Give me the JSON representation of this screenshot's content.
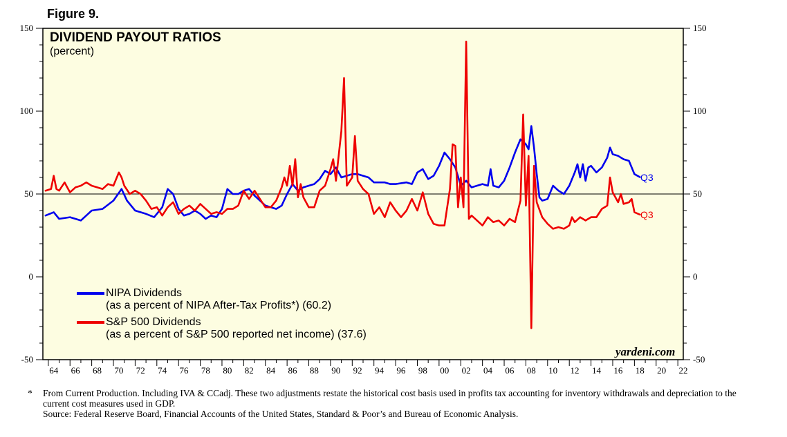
{
  "figure_label": "Figure 9.",
  "watermark": "yardeni.com",
  "footnote": {
    "marker": "*",
    "line1": "From Current Production. Including IVA & CCadj. These two adjustments restate the historical cost basis used in profits tax accounting for inventory withdrawals and depreciation to the current cost measures used in GDP.",
    "source": "Source: Federal Reserve Board, Financial Accounts of the United States, Standard & Poor’s and Bureau of Economic Analysis."
  },
  "legend": {
    "nipa_label": "NIPA Dividends",
    "nipa_note": "(as a percent of NIPA After-Tax Profits*) (60.2)",
    "sp_label": "S&P 500 Dividends",
    "sp_note": "(as a percent of S&P 500 reported net income) (37.6)"
  },
  "colors": {
    "background": "#fdfde1",
    "nipa": "#0000ee",
    "sp": "#ee0000",
    "axis": "#000000"
  },
  "chart_data": {
    "type": "line",
    "title": "DIVIDEND PAYOUT RATIOS",
    "subtitle": "(percent)",
    "ylabel": "percent",
    "xlim": [
      1963.5,
      2022.5
    ],
    "ylim": [
      -50,
      150
    ],
    "y_ticks": [
      -50,
      0,
      50,
      100,
      150
    ],
    "x_tick_labels": [
      "64",
      "66",
      "68",
      "70",
      "72",
      "74",
      "76",
      "78",
      "80",
      "82",
      "84",
      "86",
      "88",
      "90",
      "92",
      "94",
      "96",
      "98",
      "00",
      "02",
      "04",
      "06",
      "08",
      "10",
      "12",
      "14",
      "16",
      "18",
      "20",
      "22"
    ],
    "x_tick_years": [
      1964,
      1966,
      1968,
      1970,
      1972,
      1974,
      1976,
      1978,
      1980,
      1982,
      1984,
      1986,
      1988,
      1990,
      1992,
      1994,
      1996,
      1998,
      2000,
      2002,
      2004,
      2006,
      2008,
      2010,
      2012,
      2014,
      2016,
      2018,
      2020,
      2022
    ],
    "reference_line": 50,
    "series": [
      {
        "name": "NIPA Dividends",
        "end_label": "Q3",
        "last_value": 60.2,
        "points": [
          [
            1963.75,
            37
          ],
          [
            1964.5,
            39
          ],
          [
            1965,
            35
          ],
          [
            1966,
            36
          ],
          [
            1967,
            34
          ],
          [
            1968,
            40
          ],
          [
            1969,
            41
          ],
          [
            1970,
            46
          ],
          [
            1970.75,
            53
          ],
          [
            1971.25,
            46
          ],
          [
            1972,
            40
          ],
          [
            1973,
            38
          ],
          [
            1973.75,
            36
          ],
          [
            1974.5,
            42
          ],
          [
            1975,
            53
          ],
          [
            1975.5,
            50
          ],
          [
            1976,
            41
          ],
          [
            1976.5,
            37
          ],
          [
            1977,
            38
          ],
          [
            1977.5,
            40
          ],
          [
            1978,
            38
          ],
          [
            1978.5,
            35
          ],
          [
            1979,
            37
          ],
          [
            1979.5,
            36
          ],
          [
            1980,
            41
          ],
          [
            1980.5,
            53
          ],
          [
            1981,
            50
          ],
          [
            1981.5,
            50
          ],
          [
            1982,
            52
          ],
          [
            1982.5,
            53
          ],
          [
            1983,
            49
          ],
          [
            1983.5,
            46
          ],
          [
            1984,
            43
          ],
          [
            1985,
            41
          ],
          [
            1985.5,
            43
          ],
          [
            1986,
            50
          ],
          [
            1986.5,
            56
          ],
          [
            1987,
            52
          ],
          [
            1987.5,
            54
          ],
          [
            1988,
            55
          ],
          [
            1988.5,
            56
          ],
          [
            1989,
            59
          ],
          [
            1989.5,
            64
          ],
          [
            1990,
            62
          ],
          [
            1990.5,
            66
          ],
          [
            1991,
            60
          ],
          [
            1991.5,
            61
          ],
          [
            1992,
            62
          ],
          [
            1992.5,
            62
          ],
          [
            1993,
            61
          ],
          [
            1993.5,
            60
          ],
          [
            1994,
            57
          ],
          [
            1995,
            57
          ],
          [
            1995.5,
            56
          ],
          [
            1996,
            56
          ],
          [
            1997,
            57
          ],
          [
            1997.5,
            56
          ],
          [
            1998,
            63
          ],
          [
            1998.5,
            65
          ],
          [
            1999,
            59
          ],
          [
            1999.5,
            61
          ],
          [
            2000,
            67
          ],
          [
            2000.5,
            75
          ],
          [
            2001,
            71
          ],
          [
            2001.5,
            66
          ],
          [
            2002,
            55
          ],
          [
            2002.5,
            58
          ],
          [
            2003,
            54
          ],
          [
            2003.5,
            55
          ],
          [
            2004,
            56
          ],
          [
            2004.5,
            55
          ],
          [
            2004.75,
            65
          ],
          [
            2005,
            55
          ],
          [
            2005.5,
            54
          ],
          [
            2006,
            58
          ],
          [
            2006.5,
            66
          ],
          [
            2007,
            75
          ],
          [
            2007.5,
            83
          ],
          [
            2008,
            80
          ],
          [
            2008.25,
            77
          ],
          [
            2008.5,
            91
          ],
          [
            2008.75,
            78
          ],
          [
            2009,
            62
          ],
          [
            2009.25,
            48
          ],
          [
            2009.5,
            46
          ],
          [
            2010,
            47
          ],
          [
            2010.5,
            55
          ],
          [
            2011,
            52
          ],
          [
            2011.5,
            50
          ],
          [
            2012,
            55
          ],
          [
            2012.5,
            63
          ],
          [
            2012.75,
            68
          ],
          [
            2013,
            60
          ],
          [
            2013.25,
            68
          ],
          [
            2013.5,
            58
          ],
          [
            2013.75,
            66
          ],
          [
            2014,
            67
          ],
          [
            2014.5,
            63
          ],
          [
            2015,
            66
          ],
          [
            2015.5,
            72
          ],
          [
            2015.75,
            78
          ],
          [
            2016,
            74
          ],
          [
            2016.5,
            73
          ],
          [
            2017,
            71
          ],
          [
            2017.5,
            70
          ],
          [
            2018,
            62
          ],
          [
            2018.5,
            60.2
          ]
        ]
      },
      {
        "name": "S&P 500 Dividends",
        "end_label": "Q3",
        "last_value": 37.6,
        "points": [
          [
            1963.75,
            52
          ],
          [
            1964.25,
            53
          ],
          [
            1964.5,
            61
          ],
          [
            1964.75,
            53
          ],
          [
            1965,
            52
          ],
          [
            1965.5,
            57
          ],
          [
            1966,
            51
          ],
          [
            1966.5,
            54
          ],
          [
            1967,
            55
          ],
          [
            1967.5,
            57
          ],
          [
            1968,
            55
          ],
          [
            1968.5,
            54
          ],
          [
            1969,
            53
          ],
          [
            1969.5,
            56
          ],
          [
            1970,
            55
          ],
          [
            1970.5,
            63
          ],
          [
            1970.75,
            60
          ],
          [
            1971,
            55
          ],
          [
            1971.5,
            50
          ],
          [
            1972,
            52
          ],
          [
            1972.5,
            50
          ],
          [
            1973,
            46
          ],
          [
            1973.5,
            41
          ],
          [
            1974,
            42
          ],
          [
            1974.5,
            37
          ],
          [
            1975,
            42
          ],
          [
            1975.5,
            45
          ],
          [
            1976,
            38
          ],
          [
            1976.5,
            41
          ],
          [
            1977,
            43
          ],
          [
            1977.5,
            40
          ],
          [
            1978,
            44
          ],
          [
            1978.5,
            41
          ],
          [
            1979,
            38
          ],
          [
            1979.5,
            39
          ],
          [
            1980,
            38
          ],
          [
            1980.5,
            41
          ],
          [
            1981,
            41
          ],
          [
            1981.5,
            43
          ],
          [
            1982,
            52
          ],
          [
            1982.5,
            47
          ],
          [
            1983,
            52
          ],
          [
            1983.5,
            47
          ],
          [
            1984,
            42
          ],
          [
            1984.5,
            42
          ],
          [
            1985,
            46
          ],
          [
            1985.5,
            54
          ],
          [
            1985.75,
            60
          ],
          [
            1986,
            55
          ],
          [
            1986.25,
            67
          ],
          [
            1986.5,
            55
          ],
          [
            1986.75,
            71
          ],
          [
            1987,
            48
          ],
          [
            1987.25,
            56
          ],
          [
            1987.5,
            48
          ],
          [
            1988,
            42
          ],
          [
            1988.5,
            42
          ],
          [
            1989,
            52
          ],
          [
            1989.5,
            55
          ],
          [
            1990,
            65
          ],
          [
            1990.25,
            71
          ],
          [
            1990.5,
            58
          ],
          [
            1991,
            88
          ],
          [
            1991.25,
            120
          ],
          [
            1991.5,
            55
          ],
          [
            1992,
            60
          ],
          [
            1992.25,
            85
          ],
          [
            1992.5,
            58
          ],
          [
            1993,
            53
          ],
          [
            1993.5,
            50
          ],
          [
            1994,
            38
          ],
          [
            1994.5,
            42
          ],
          [
            1995,
            36
          ],
          [
            1995.5,
            45
          ],
          [
            1996,
            40
          ],
          [
            1996.5,
            36
          ],
          [
            1997,
            40
          ],
          [
            1997.5,
            47
          ],
          [
            1998,
            40
          ],
          [
            1998.5,
            51
          ],
          [
            1999,
            38
          ],
          [
            1999.5,
            32
          ],
          [
            2000,
            31
          ],
          [
            2000.5,
            31
          ],
          [
            2001,
            53
          ],
          [
            2001.25,
            80
          ],
          [
            2001.5,
            79
          ],
          [
            2001.75,
            42
          ],
          [
            2002,
            60
          ],
          [
            2002.25,
            42
          ],
          [
            2002.5,
            142
          ],
          [
            2002.75,
            35
          ],
          [
            2003,
            37
          ],
          [
            2003.5,
            34
          ],
          [
            2004,
            31
          ],
          [
            2004.5,
            36
          ],
          [
            2005,
            33
          ],
          [
            2005.5,
            34
          ],
          [
            2006,
            31
          ],
          [
            2006.5,
            35
          ],
          [
            2007,
            33
          ],
          [
            2007.5,
            46
          ],
          [
            2007.75,
            98
          ],
          [
            2008,
            43
          ],
          [
            2008.25,
            73
          ],
          [
            2008.5,
            -31
          ],
          [
            2008.75,
            67
          ],
          [
            2009,
            45
          ],
          [
            2009.5,
            36
          ],
          [
            2010,
            32
          ],
          [
            2010.5,
            29
          ],
          [
            2011,
            30
          ],
          [
            2011.5,
            29
          ],
          [
            2012,
            31
          ],
          [
            2012.25,
            36
          ],
          [
            2012.5,
            33
          ],
          [
            2013,
            36
          ],
          [
            2013.5,
            34
          ],
          [
            2014,
            36
          ],
          [
            2014.5,
            36
          ],
          [
            2015,
            41
          ],
          [
            2015.5,
            43
          ],
          [
            2015.75,
            60
          ],
          [
            2016,
            51
          ],
          [
            2016.5,
            45
          ],
          [
            2016.75,
            50
          ],
          [
            2017,
            44
          ],
          [
            2017.5,
            45
          ],
          [
            2017.75,
            47
          ],
          [
            2018,
            39
          ],
          [
            2018.5,
            37.6
          ]
        ]
      }
    ]
  }
}
